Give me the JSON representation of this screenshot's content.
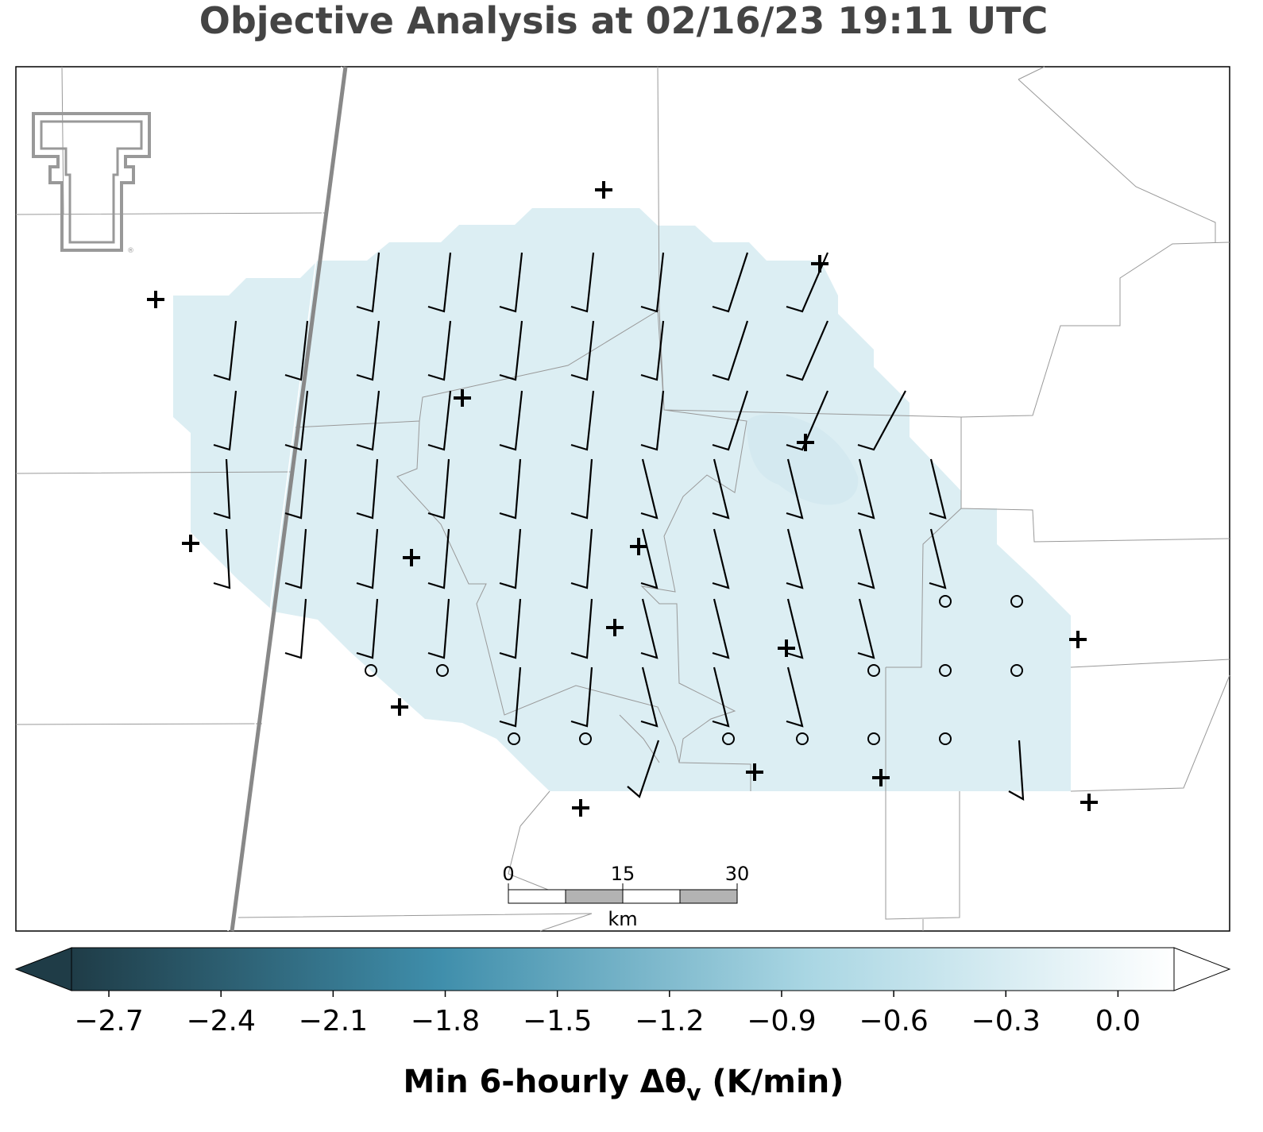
{
  "title": "Objective Analysis at 02/16/23 19:11 UTC",
  "colorbar": {
    "lim": [
      -2.8,
      0.15
    ],
    "ticks": [
      {
        "value": -2.7,
        "label": "−2.7"
      },
      {
        "value": -2.4,
        "label": "−2.4"
      },
      {
        "value": -2.1,
        "label": "−2.1"
      },
      {
        "value": -1.8,
        "label": "−1.8"
      },
      {
        "value": -1.5,
        "label": "−1.5"
      },
      {
        "value": -1.2,
        "label": "−1.2"
      },
      {
        "value": -0.9,
        "label": "−0.9"
      },
      {
        "value": -0.6,
        "label": "−0.6"
      },
      {
        "value": -0.3,
        "label": "−0.3"
      },
      {
        "value": 0.0,
        "label": "0.0"
      }
    ],
    "colormap": [
      "#1f3c47",
      "#3f8eab",
      "#a9d6e3",
      "#ffffff"
    ],
    "label_main": "Min 6-hourly Δθ",
    "label_subscript": "v",
    "label_units": " (K/min)"
  },
  "scale_bar": {
    "lim": [
      0,
      30
    ],
    "ticks": [
      0,
      15,
      30
    ],
    "unit": "km"
  }
}
